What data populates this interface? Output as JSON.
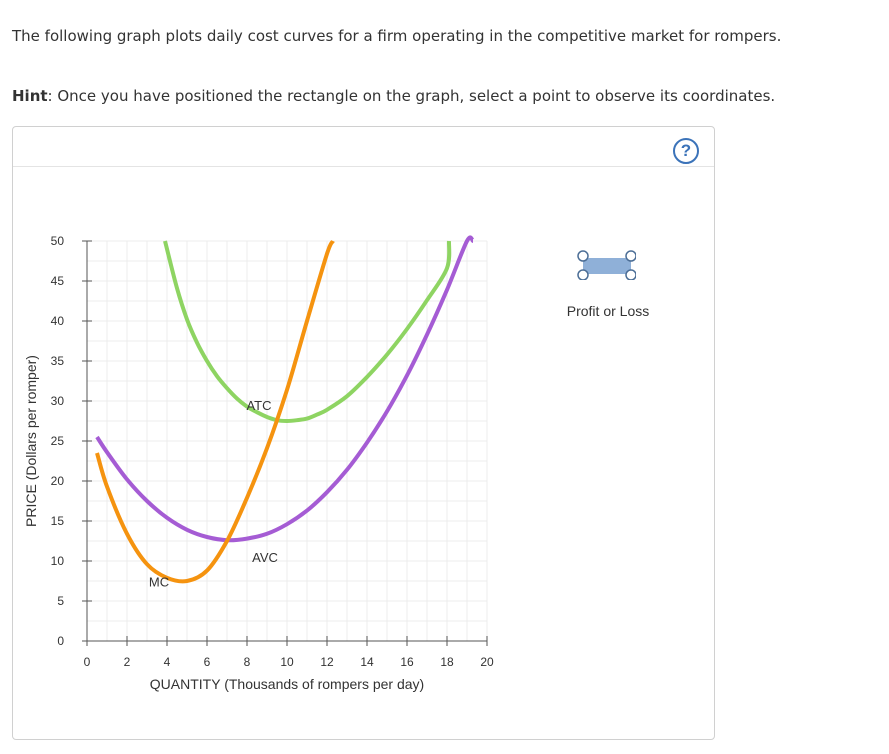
{
  "intro_text": "The following graph plots daily cost curves for a firm operating in the competitive market for rompers.",
  "hint": {
    "label": "Hint",
    "text": ": Once you have positioned the rectangle on the graph, select a point to observe its coordinates."
  },
  "help_symbol": "?",
  "legend": {
    "tool_label": "Profit or Loss",
    "tool_color": "#8fb0d8",
    "handle_color": "#4c6e96"
  },
  "chart_data": {
    "type": "line",
    "xlabel": "QUANTITY (Thousands of rompers per day)",
    "ylabel": "PRICE (Dollars per romper)",
    "xlim": [
      0,
      20
    ],
    "ylim": [
      0,
      50
    ],
    "x_ticks": [
      0,
      2,
      4,
      6,
      8,
      10,
      12,
      14,
      16,
      18,
      20
    ],
    "y_ticks": [
      0,
      5,
      10,
      15,
      20,
      25,
      30,
      35,
      40,
      45,
      50
    ],
    "grid": true,
    "series": [
      {
        "name": "ATC",
        "color": "#8ed462",
        "x": [
          3.9,
          4.5,
          5,
          5.5,
          6,
          6.5,
          7,
          7.5,
          8,
          8.5,
          9,
          9.5,
          10,
          10.5,
          11,
          11.5,
          12,
          13,
          14,
          15,
          16,
          17,
          18,
          18.1
        ],
        "y": [
          50,
          44.1,
          40.2,
          37.3,
          35.0,
          33.1,
          31.6,
          30.3,
          29.3,
          28.6,
          28.0,
          27.6,
          27.5,
          27.6,
          27.8,
          28.3,
          28.9,
          30.6,
          33.0,
          35.8,
          39.0,
          42.6,
          46.6,
          50
        ]
      },
      {
        "name": "AVC",
        "color": "#a55cd4",
        "x": [
          0.5,
          1,
          2,
          3,
          4,
          5,
          6,
          7,
          8,
          9,
          10,
          11,
          12,
          13,
          14,
          15,
          16,
          17,
          18,
          19,
          19.3
        ],
        "y": [
          25.5,
          23.6,
          20.2,
          17.5,
          15.4,
          13.9,
          13.0,
          12.6,
          12.8,
          13.4,
          14.6,
          16.3,
          18.6,
          21.4,
          24.8,
          28.7,
          33.2,
          38.3,
          43.9,
          50.0,
          50
        ]
      },
      {
        "name": "MC",
        "color": "#f5930f",
        "x": [
          0.5,
          1,
          2,
          3,
          4,
          5,
          6,
          7,
          8,
          9,
          10,
          11,
          12,
          12.3
        ],
        "y": [
          23.5,
          19.3,
          13.4,
          9.6,
          7.9,
          7.5,
          8.8,
          12.5,
          17.9,
          24.1,
          31.4,
          40.0,
          48.4,
          50
        ]
      }
    ],
    "annotations": [
      {
        "text": "ATC",
        "x": 8.6,
        "y": 28.9
      },
      {
        "text": "AVC",
        "x": 8.9,
        "y": 9.9
      },
      {
        "text": "MC",
        "x": 3.6,
        "y": 6.8
      }
    ]
  }
}
